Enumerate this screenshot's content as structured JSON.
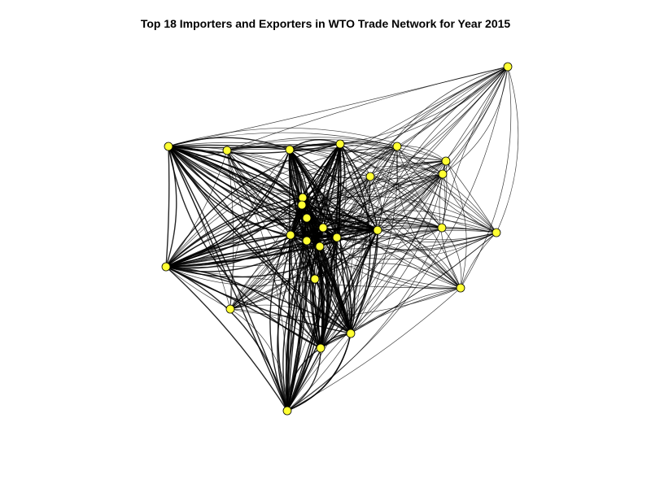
{
  "title": "Top 18 Importers and Exporters in WTO Trade Network for Year 2015",
  "colors": {
    "node_fill": "#ffff33",
    "node_stroke": "#000000",
    "edge": "#000000",
    "background": "#ffffff"
  },
  "network": {
    "nodes": [
      {
        "id": "n01",
        "label": ""
      },
      {
        "id": "n02",
        "label": ""
      },
      {
        "id": "n03",
        "label": ""
      },
      {
        "id": "n04",
        "label": ""
      },
      {
        "id": "n05",
        "label": ""
      },
      {
        "id": "n06",
        "label": ""
      },
      {
        "id": "n07",
        "label": ""
      },
      {
        "id": "n08",
        "label": ""
      },
      {
        "id": "n09",
        "label": ""
      },
      {
        "id": "n10",
        "label": ""
      },
      {
        "id": "n11",
        "label": ""
      },
      {
        "id": "n12",
        "label": ""
      },
      {
        "id": "n13",
        "label": ""
      },
      {
        "id": "n14",
        "label": ""
      },
      {
        "id": "n15",
        "label": ""
      },
      {
        "id": "n16",
        "label": ""
      },
      {
        "id": "n17",
        "label": ""
      },
      {
        "id": "n18",
        "label": ""
      },
      {
        "id": "n19",
        "label": ""
      },
      {
        "id": "n20",
        "label": ""
      },
      {
        "id": "n21",
        "label": ""
      },
      {
        "id": "n22",
        "label": ""
      },
      {
        "id": "n23",
        "label": ""
      },
      {
        "id": "n24",
        "label": ""
      },
      {
        "id": "n25",
        "label": ""
      },
      {
        "id": "n26",
        "label": ""
      },
      {
        "id": "n27",
        "label": ""
      }
    ]
  }
}
